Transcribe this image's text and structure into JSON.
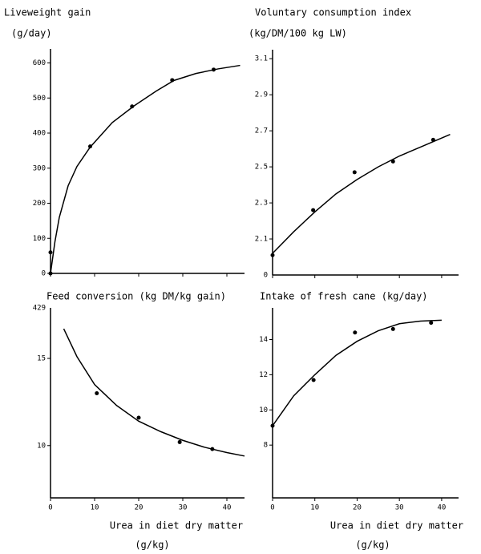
{
  "chart_data": [
    {
      "type": "scatter",
      "title": "Liveweight gain",
      "subtitle": "(g/day)",
      "xlim": [
        0,
        44
      ],
      "xticks": [
        0,
        10,
        20,
        30,
        40
      ],
      "show_xtick_labels": false,
      "ylim": [
        0,
        640
      ],
      "yticks": [
        0,
        100,
        200,
        300,
        400,
        500,
        600
      ],
      "color": "#000000",
      "series": [
        {
          "mode": "markers",
          "x": [
            0,
            0,
            9,
            18.5,
            27.6,
            37
          ],
          "values": [
            0,
            60,
            362,
            476,
            551,
            581
          ]
        },
        {
          "mode": "line",
          "x": [
            0,
            1,
            2,
            4,
            6,
            9,
            14,
            19,
            24,
            28,
            33,
            38,
            43
          ],
          "values": [
            0,
            90,
            160,
            250,
            305,
            360,
            430,
            478,
            520,
            550,
            570,
            583,
            593
          ]
        }
      ]
    },
    {
      "type": "scatter",
      "title": "Voluntary consumption index",
      "subtitle": "(kg/DM/100 kg LW)",
      "xlim": [
        0,
        44
      ],
      "xticks": [
        0,
        10,
        20,
        30,
        40
      ],
      "show_xtick_labels": false,
      "ylim": [
        1.9,
        3.15
      ],
      "yticks": [
        2.1,
        2.3,
        2.5,
        2.7,
        2.9,
        3.1
      ],
      "y_origin_label": "0",
      "color": "#000000",
      "series": [
        {
          "mode": "markers",
          "x": [
            0,
            9.6,
            19.4,
            28.5,
            38
          ],
          "values": [
            2.01,
            2.26,
            2.47,
            2.53,
            2.65
          ]
        },
        {
          "mode": "line",
          "x": [
            0,
            5,
            10,
            15,
            20,
            25,
            30,
            35,
            40,
            42
          ],
          "values": [
            2.02,
            2.14,
            2.25,
            2.35,
            2.43,
            2.5,
            2.56,
            2.61,
            2.66,
            2.68
          ]
        }
      ]
    },
    {
      "type": "scatter",
      "title": "Feed conversion (kg DM/kg gain)",
      "x_label": "Urea in diet dry matter",
      "x_unit": "(g/kg)",
      "xlim": [
        0,
        44
      ],
      "xticks": [
        0,
        10,
        20,
        30,
        40
      ],
      "show_xtick_labels": true,
      "ylim": [
        7,
        17.9
      ],
      "yticks": [
        10,
        15
      ],
      "y_top_label": "429",
      "color": "#000000",
      "series": [
        {
          "mode": "markers",
          "x": [
            10.5,
            20,
            29.3,
            36.7
          ],
          "values": [
            13.0,
            11.6,
            10.2,
            9.8
          ]
        },
        {
          "mode": "line",
          "x": [
            3,
            6,
            10,
            15,
            20,
            25,
            30,
            35,
            40,
            44
          ],
          "values": [
            16.7,
            15.1,
            13.5,
            12.3,
            11.4,
            10.8,
            10.3,
            9.9,
            9.6,
            9.4
          ]
        }
      ]
    },
    {
      "type": "scatter",
      "title": "Intake of fresh cane (kg/day)",
      "x_label": "Urea in diet dry matter",
      "x_unit": "(g/kg)",
      "xlim": [
        0,
        44
      ],
      "xticks": [
        0,
        10,
        20,
        30,
        40
      ],
      "show_xtick_labels": true,
      "ylim": [
        5,
        15.8
      ],
      "yticks": [
        8,
        10,
        12,
        14
      ],
      "color": "#000000",
      "series": [
        {
          "mode": "markers",
          "x": [
            0,
            9.7,
            19.5,
            28.5,
            37.5
          ],
          "values": [
            9.1,
            11.7,
            14.4,
            14.6,
            14.95
          ]
        },
        {
          "mode": "line",
          "x": [
            0,
            5,
            10,
            15,
            20,
            25,
            30,
            35,
            40
          ],
          "values": [
            9.1,
            10.8,
            12.0,
            13.1,
            13.9,
            14.5,
            14.9,
            15.05,
            15.1
          ]
        }
      ]
    }
  ]
}
